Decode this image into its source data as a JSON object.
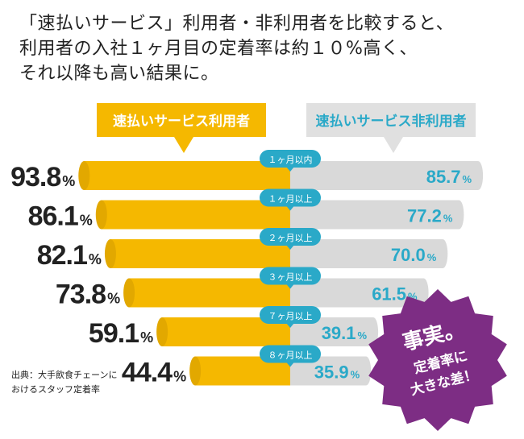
{
  "headline": [
    "「速払いサービス」利用者・非利用者を比較すると、",
    "利用者の入社１ヶ月目の定着率は約１０%高く、",
    "それ以降も高い結果に。"
  ],
  "legend": {
    "users": "速払いサービス利用者",
    "non_users": "速払いサービス非利用者"
  },
  "source_note": [
    "出典：大手飲食チェーンに",
    "おけるスタッフ定着率"
  ],
  "badge": {
    "title": "事実。",
    "line1": "定着率に",
    "line2": "大きな差！"
  },
  "colors": {
    "users": "#f5b800",
    "non_users": "#d9d9d9",
    "accent": "#2aa9c8",
    "badge": "#7d2d84"
  },
  "chart_data": {
    "type": "bar",
    "orientation": "horizontal",
    "unit": "%",
    "categories": [
      "１ヶ月以内",
      "１ヶ月以上",
      "２ヶ月以上",
      "３ヶ月以上",
      "７ヶ月以上",
      "８ヶ月以上"
    ],
    "series": [
      {
        "name": "速払いサービス利用者",
        "values": [
          93.8,
          86.1,
          82.1,
          73.8,
          59.1,
          44.4
        ]
      },
      {
        "name": "速払いサービス非利用者",
        "values": [
          85.7,
          77.2,
          70.0,
          61.5,
          39.1,
          35.9
        ]
      }
    ],
    "value_labels": {
      "users": [
        "93.8",
        "86.1",
        "82.1",
        "73.8",
        "59.1",
        "44.4"
      ],
      "non_users": [
        "85.7",
        "77.2",
        "70.0",
        "61.5",
        "39.1",
        "35.9"
      ]
    }
  }
}
